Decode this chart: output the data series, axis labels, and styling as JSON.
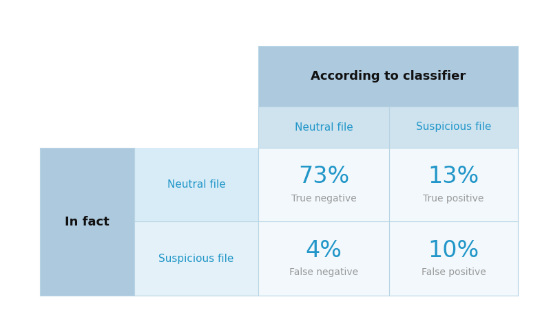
{
  "title": "According to classifier",
  "row_header": "In fact",
  "col_labels": [
    "Neutral file",
    "Suspicious file"
  ],
  "row_labels": [
    "Neutral file",
    "Suspicious file"
  ],
  "values": [
    [
      "73%",
      "13%"
    ],
    [
      "4%",
      "10%"
    ]
  ],
  "sub_labels": [
    [
      "True negative",
      "True positive"
    ],
    [
      "False negative",
      "False positive"
    ]
  ],
  "color_header_top": "#adc9de",
  "color_header_sub": "#cfe3ef",
  "color_row_header": "#adc9de",
  "color_row_label1": "#d8ecf7",
  "color_row_label2": "#e4f1f8",
  "color_cell": "#f2f8fc",
  "color_border": "#b8d4e4",
  "color_value": "#2196c8",
  "color_sublabel": "#999999",
  "color_header_text": "#111111",
  "bg_color": "#ffffff",
  "title_fontsize": 13,
  "value_fontsize": 24,
  "label_fontsize": 11,
  "sub_fontsize": 10,
  "header_fontsize": 11,
  "infact_fontsize": 13
}
